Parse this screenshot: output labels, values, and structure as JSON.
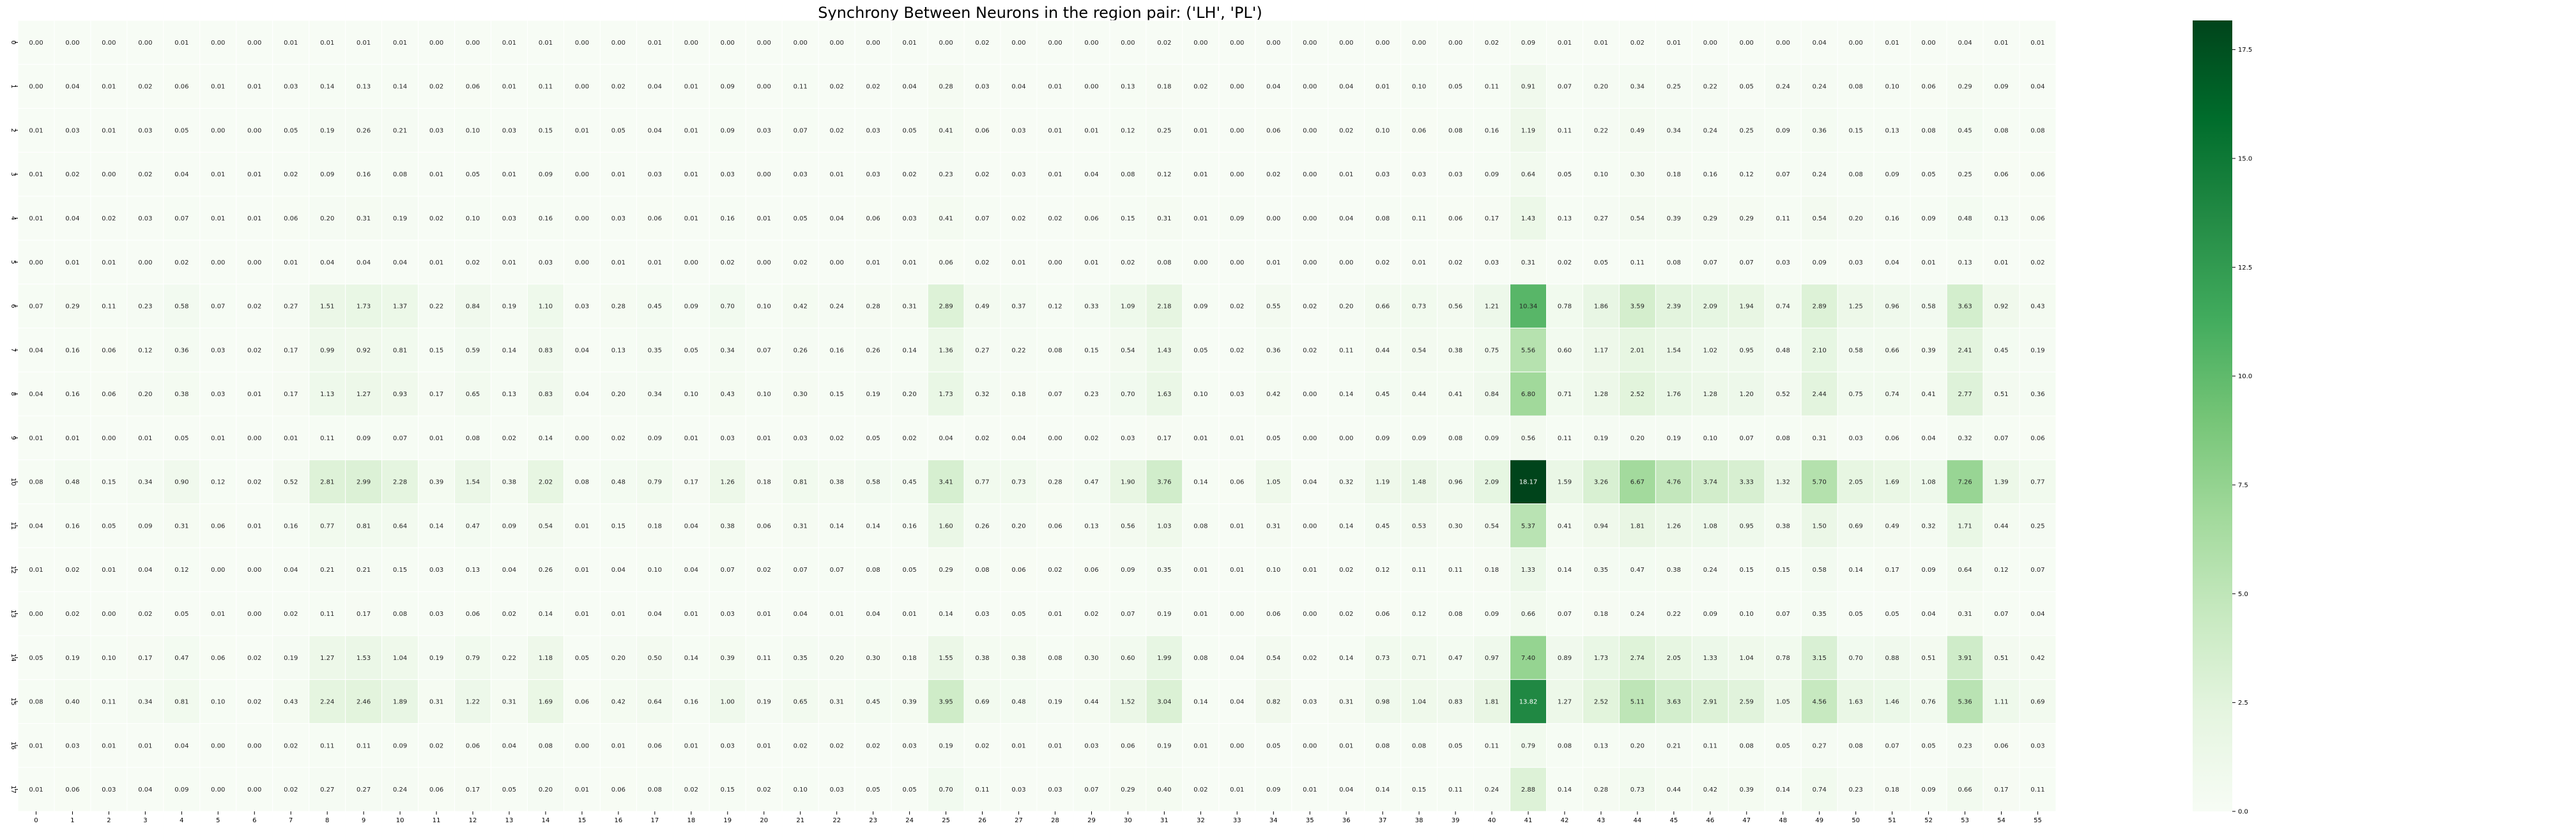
{
  "chart_data": {
    "type": "heatmap",
    "title": "Synchrony Between Neurons in the region pair: ('LH', 'PL')",
    "xlabel": "",
    "ylabel": "",
    "x_tick_labels": [
      "0",
      "1",
      "2",
      "3",
      "4",
      "5",
      "6",
      "7",
      "8",
      "9",
      "10",
      "11",
      "12",
      "13",
      "14",
      "15",
      "16",
      "17",
      "18",
      "19",
      "20",
      "21",
      "22",
      "23",
      "24",
      "25",
      "26",
      "27",
      "28",
      "29",
      "30",
      "31",
      "32",
      "33",
      "34",
      "35",
      "36",
      "37",
      "38",
      "39",
      "40",
      "41",
      "42",
      "43",
      "44",
      "45",
      "46",
      "47",
      "48",
      "49",
      "50",
      "51",
      "52",
      "53",
      "54",
      "55"
    ],
    "y_tick_labels": [
      "0",
      "1",
      "2",
      "3",
      "4",
      "5",
      "6",
      "7",
      "8",
      "9",
      "10",
      "11",
      "12",
      "13",
      "14",
      "15",
      "16",
      "17"
    ],
    "colormap": "Greens",
    "colormap_stops": [
      "#f7fcf5",
      "#e5f5e0",
      "#c7e9c0",
      "#a1d99b",
      "#74c476",
      "#41ab5d",
      "#238b45",
      "#006d2c",
      "#00441b"
    ],
    "vmin": 0,
    "vmax": 18.17,
    "colorbar_ticks": [
      "0.0",
      "2.5",
      "5.0",
      "7.5",
      "10.0",
      "12.5",
      "15.0",
      "17.5"
    ],
    "values": [
      [
        0.0,
        0.0,
        0.0,
        0.0,
        0.01,
        0.0,
        0.0,
        0.01,
        0.01,
        0.01,
        0.01,
        0.0,
        0.0,
        0.01,
        0.01,
        0.0,
        0.0,
        0.01,
        0.0,
        0.0,
        0.0,
        0.0,
        0.0,
        0.0,
        0.01,
        0.0,
        0.02,
        0.0,
        0.0,
        0.0,
        0.0,
        0.02,
        0.0,
        0.0,
        0.0,
        0.0,
        0.0,
        0.0,
        0.0,
        0.0,
        0.02,
        0.09,
        0.01,
        0.01,
        0.02,
        0.01,
        0.0,
        0.0,
        0.0,
        0.04,
        0.0,
        0.01,
        0.0,
        0.04,
        0.01,
        0.01
      ],
      [
        0.0,
        0.04,
        0.01,
        0.02,
        0.06,
        0.01,
        0.01,
        0.03,
        0.14,
        0.13,
        0.14,
        0.02,
        0.06,
        0.01,
        0.11,
        0.0,
        0.02,
        0.04,
        0.01,
        0.09,
        0.0,
        0.11,
        0.02,
        0.02,
        0.04,
        0.28,
        0.03,
        0.04,
        0.01,
        0.0,
        0.13,
        0.18,
        0.02,
        0.0,
        0.04,
        0.0,
        0.04,
        0.01,
        0.1,
        0.05,
        0.11,
        0.91,
        0.07,
        0.2,
        0.34,
        0.25,
        0.22,
        0.05,
        0.24,
        0.24,
        0.08,
        0.1,
        0.06,
        0.29,
        0.09,
        0.04
      ],
      [
        0.01,
        0.03,
        0.01,
        0.03,
        0.05,
        0.0,
        0.0,
        0.05,
        0.19,
        0.26,
        0.21,
        0.03,
        0.1,
        0.03,
        0.15,
        0.01,
        0.05,
        0.04,
        0.01,
        0.09,
        0.03,
        0.07,
        0.02,
        0.03,
        0.05,
        0.41,
        0.06,
        0.03,
        0.01,
        0.01,
        0.12,
        0.25,
        0.01,
        0.0,
        0.06,
        0.0,
        0.02,
        0.1,
        0.06,
        0.08,
        0.16,
        1.19,
        0.11,
        0.22,
        0.49,
        0.34,
        0.24,
        0.25,
        0.09,
        0.36,
        0.15,
        0.13,
        0.08,
        0.45,
        0.08,
        0.08
      ],
      [
        0.01,
        0.02,
        0.0,
        0.02,
        0.04,
        0.01,
        0.01,
        0.02,
        0.09,
        0.16,
        0.08,
        0.01,
        0.05,
        0.01,
        0.09,
        0.0,
        0.01,
        0.03,
        0.01,
        0.03,
        0.0,
        0.03,
        0.01,
        0.03,
        0.02,
        0.23,
        0.02,
        0.03,
        0.01,
        0.04,
        0.08,
        0.12,
        0.01,
        0.0,
        0.02,
        0.0,
        0.01,
        0.03,
        0.03,
        0.03,
        0.09,
        0.64,
        0.05,
        0.1,
        0.3,
        0.18,
        0.16,
        0.12,
        0.07,
        0.24,
        0.08,
        0.09,
        0.05,
        0.25,
        0.06,
        0.06
      ],
      [
        0.01,
        0.04,
        0.02,
        0.03,
        0.07,
        0.01,
        0.01,
        0.06,
        0.2,
        0.31,
        0.19,
        0.02,
        0.1,
        0.03,
        0.16,
        0.0,
        0.03,
        0.06,
        0.01,
        0.16,
        0.01,
        0.05,
        0.04,
        0.06,
        0.03,
        0.41,
        0.07,
        0.02,
        0.02,
        0.06,
        0.15,
        0.31,
        0.01,
        0.09,
        0.0,
        0.0,
        0.04,
        0.08,
        0.11,
        0.06,
        0.17,
        1.43,
        0.13,
        0.27,
        0.54,
        0.39,
        0.29,
        0.29,
        0.11,
        0.54,
        0.2,
        0.16,
        0.09,
        0.48,
        0.13,
        0.06
      ],
      [
        0.0,
        0.01,
        0.01,
        0.0,
        0.02,
        0.0,
        0.0,
        0.01,
        0.04,
        0.04,
        0.04,
        0.01,
        0.02,
        0.01,
        0.03,
        0.0,
        0.01,
        0.01,
        0.0,
        0.02,
        0.0,
        0.02,
        0.0,
        0.01,
        0.01,
        0.06,
        0.02,
        0.01,
        0.0,
        0.01,
        0.02,
        0.08,
        0.0,
        0.0,
        0.01,
        0.0,
        0.0,
        0.02,
        0.01,
        0.02,
        0.03,
        0.31,
        0.02,
        0.05,
        0.11,
        0.08,
        0.07,
        0.07,
        0.03,
        0.09,
        0.03,
        0.04,
        0.01,
        0.13,
        0.01,
        0.02
      ],
      [
        0.07,
        0.29,
        0.11,
        0.23,
        0.58,
        0.07,
        0.02,
        0.27,
        1.51,
        1.73,
        1.37,
        0.22,
        0.84,
        0.19,
        1.1,
        0.03,
        0.28,
        0.45,
        0.09,
        0.7,
        0.1,
        0.42,
        0.24,
        0.28,
        0.31,
        2.89,
        0.49,
        0.37,
        0.12,
        0.33,
        1.09,
        2.18,
        0.09,
        0.02,
        0.55,
        0.02,
        0.2,
        0.66,
        0.73,
        0.56,
        1.21,
        10.34,
        0.78,
        1.86,
        3.59,
        2.39,
        2.09,
        1.94,
        0.74,
        2.89,
        1.25,
        0.96,
        0.58,
        3.63,
        0.92,
        0.43
      ],
      [
        0.04,
        0.16,
        0.06,
        0.12,
        0.36,
        0.03,
        0.02,
        0.17,
        0.99,
        0.92,
        0.81,
        0.15,
        0.59,
        0.14,
        0.83,
        0.04,
        0.13,
        0.35,
        0.05,
        0.34,
        0.07,
        0.26,
        0.16,
        0.26,
        0.14,
        1.36,
        0.27,
        0.22,
        0.08,
        0.15,
        0.54,
        1.43,
        0.05,
        0.02,
        0.36,
        0.02,
        0.11,
        0.44,
        0.54,
        0.38,
        0.75,
        5.56,
        0.6,
        1.17,
        2.01,
        1.54,
        1.02,
        0.95,
        0.48,
        2.1,
        0.58,
        0.66,
        0.39,
        2.41,
        0.45,
        0.19
      ],
      [
        0.04,
        0.16,
        0.06,
        0.2,
        0.38,
        0.03,
        0.01,
        0.17,
        1.13,
        1.27,
        0.93,
        0.17,
        0.65,
        0.13,
        0.83,
        0.04,
        0.2,
        0.34,
        0.1,
        0.43,
        0.1,
        0.3,
        0.15,
        0.19,
        0.2,
        1.73,
        0.32,
        0.18,
        0.07,
        0.23,
        0.7,
        1.63,
        0.1,
        0.03,
        0.42,
        0.0,
        0.14,
        0.45,
        0.44,
        0.41,
        0.84,
        6.8,
        0.71,
        1.28,
        2.52,
        1.76,
        1.28,
        1.2,
        0.52,
        2.44,
        0.75,
        0.74,
        0.41,
        2.77,
        0.51,
        0.36
      ],
      [
        0.01,
        0.01,
        0.0,
        0.01,
        0.05,
        0.01,
        0.0,
        0.01,
        0.11,
        0.09,
        0.07,
        0.01,
        0.08,
        0.02,
        0.14,
        0.0,
        0.02,
        0.09,
        0.01,
        0.03,
        0.01,
        0.03,
        0.02,
        0.05,
        0.02,
        0.04,
        0.02,
        0.04,
        0.0,
        0.02,
        0.03,
        0.17,
        0.01,
        0.01,
        0.05,
        0.0,
        0.0,
        0.09,
        0.09,
        0.08,
        0.09,
        0.56,
        0.11,
        0.19,
        0.2,
        0.19,
        0.1,
        0.07,
        0.08,
        0.31,
        0.03,
        0.06,
        0.04,
        0.32,
        0.07,
        0.06
      ],
      [
        0.08,
        0.48,
        0.15,
        0.34,
        0.9,
        0.12,
        0.02,
        0.52,
        2.81,
        2.99,
        2.28,
        0.39,
        1.54,
        0.38,
        2.02,
        0.08,
        0.48,
        0.79,
        0.17,
        1.26,
        0.18,
        0.81,
        0.38,
        0.58,
        0.45,
        3.41,
        0.77,
        0.73,
        0.28,
        0.47,
        1.9,
        3.76,
        0.14,
        0.06,
        1.05,
        0.04,
        0.32,
        1.19,
        1.48,
        0.96,
        2.09,
        18.17,
        1.59,
        3.26,
        6.67,
        4.76,
        3.74,
        3.33,
        1.32,
        5.7,
        2.05,
        1.69,
        1.08,
        7.26,
        1.39,
        0.77
      ],
      [
        0.04,
        0.16,
        0.05,
        0.09,
        0.31,
        0.06,
        0.01,
        0.16,
        0.77,
        0.81,
        0.64,
        0.14,
        0.47,
        0.09,
        0.54,
        0.01,
        0.15,
        0.18,
        0.04,
        0.38,
        0.06,
        0.31,
        0.14,
        0.14,
        0.16,
        1.6,
        0.26,
        0.2,
        0.06,
        0.13,
        0.56,
        1.03,
        0.08,
        0.01,
        0.31,
        0.0,
        0.14,
        0.45,
        0.53,
        0.3,
        0.54,
        5.37,
        0.41,
        0.94,
        1.81,
        1.26,
        1.08,
        0.95,
        0.38,
        1.5,
        0.69,
        0.49,
        0.32,
        1.71,
        0.44,
        0.25
      ],
      [
        0.01,
        0.02,
        0.01,
        0.04,
        0.12,
        0.0,
        0.0,
        0.04,
        0.21,
        0.21,
        0.15,
        0.03,
        0.13,
        0.04,
        0.26,
        0.01,
        0.04,
        0.1,
        0.04,
        0.07,
        0.02,
        0.07,
        0.07,
        0.08,
        0.05,
        0.29,
        0.08,
        0.06,
        0.02,
        0.06,
        0.09,
        0.35,
        0.01,
        0.01,
        0.1,
        0.01,
        0.02,
        0.12,
        0.11,
        0.11,
        0.18,
        1.33,
        0.14,
        0.35,
        0.47,
        0.38,
        0.24,
        0.15,
        0.15,
        0.58,
        0.14,
        0.17,
        0.09,
        0.64,
        0.12,
        0.07
      ],
      [
        0.0,
        0.02,
        0.0,
        0.02,
        0.05,
        0.01,
        0.0,
        0.02,
        0.11,
        0.17,
        0.08,
        0.03,
        0.06,
        0.02,
        0.14,
        0.01,
        0.01,
        0.04,
        0.01,
        0.03,
        0.01,
        0.04,
        0.01,
        0.04,
        0.01,
        0.14,
        0.03,
        0.05,
        0.01,
        0.02,
        0.07,
        0.19,
        0.01,
        0.0,
        0.06,
        0.0,
        0.02,
        0.06,
        0.12,
        0.08,
        0.09,
        0.66,
        0.07,
        0.18,
        0.24,
        0.22,
        0.09,
        0.1,
        0.07,
        0.35,
        0.05,
        0.05,
        0.04,
        0.31,
        0.07,
        0.04
      ],
      [
        0.05,
        0.19,
        0.1,
        0.17,
        0.47,
        0.06,
        0.02,
        0.19,
        1.27,
        1.53,
        1.04,
        0.19,
        0.79,
        0.22,
        1.18,
        0.05,
        0.2,
        0.5,
        0.14,
        0.39,
        0.11,
        0.35,
        0.2,
        0.3,
        0.18,
        1.55,
        0.38,
        0.38,
        0.08,
        0.3,
        0.6,
        1.99,
        0.08,
        0.04,
        0.54,
        0.02,
        0.14,
        0.73,
        0.71,
        0.47,
        0.97,
        7.4,
        0.89,
        1.73,
        2.74,
        2.05,
        1.33,
        1.04,
        0.78,
        3.15,
        0.7,
        0.88,
        0.51,
        3.91,
        0.51,
        0.42
      ],
      [
        0.08,
        0.4,
        0.11,
        0.34,
        0.81,
        0.1,
        0.02,
        0.43,
        2.24,
        2.46,
        1.89,
        0.31,
        1.22,
        0.31,
        1.69,
        0.06,
        0.42,
        0.64,
        0.16,
        1.0,
        0.19,
        0.65,
        0.31,
        0.45,
        0.39,
        3.95,
        0.69,
        0.48,
        0.19,
        0.44,
        1.52,
        3.04,
        0.14,
        0.04,
        0.82,
        0.03,
        0.31,
        0.98,
        1.04,
        0.83,
        1.81,
        13.82,
        1.27,
        2.52,
        5.11,
        3.63,
        2.91,
        2.59,
        1.05,
        4.56,
        1.63,
        1.46,
        0.76,
        5.36,
        1.11,
        0.69
      ],
      [
        0.01,
        0.03,
        0.01,
        0.01,
        0.04,
        0.0,
        0.0,
        0.02,
        0.11,
        0.11,
        0.09,
        0.02,
        0.06,
        0.04,
        0.08,
        0.0,
        0.01,
        0.06,
        0.01,
        0.03,
        0.01,
        0.02,
        0.02,
        0.02,
        0.03,
        0.19,
        0.02,
        0.01,
        0.01,
        0.03,
        0.06,
        0.19,
        0.01,
        0.0,
        0.05,
        0.0,
        0.01,
        0.08,
        0.08,
        0.05,
        0.11,
        0.79,
        0.08,
        0.13,
        0.2,
        0.21,
        0.11,
        0.08,
        0.05,
        0.27,
        0.08,
        0.07,
        0.05,
        0.23,
        0.06,
        0.03
      ],
      [
        0.01,
        0.06,
        0.03,
        0.04,
        0.09,
        0.0,
        0.0,
        0.02,
        0.27,
        0.27,
        0.24,
        0.06,
        0.17,
        0.05,
        0.2,
        0.01,
        0.06,
        0.08,
        0.02,
        0.15,
        0.02,
        0.1,
        0.03,
        0.05,
        0.05,
        0.7,
        0.11,
        0.03,
        0.03,
        0.07,
        0.29,
        0.4,
        0.02,
        0.01,
        0.09,
        0.01,
        0.04,
        0.14,
        0.15,
        0.11,
        0.24,
        2.88,
        0.14,
        0.28,
        0.73,
        0.44,
        0.42,
        0.39,
        0.14,
        0.74,
        0.23,
        0.18,
        0.09,
        0.66,
        0.17,
        0.11
      ]
    ]
  }
}
